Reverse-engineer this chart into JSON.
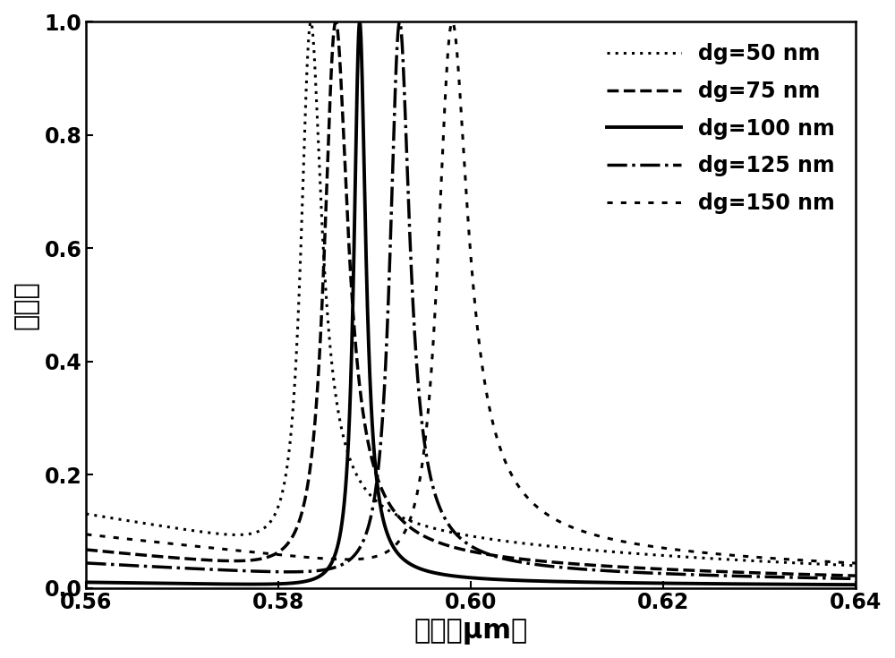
{
  "title": "",
  "xlabel": "波长（μm）",
  "ylabel": "反射率",
  "xlim": [
    0.56,
    0.64
  ],
  "ylim": [
    0.0,
    1.0
  ],
  "xticks": [
    0.56,
    0.58,
    0.6,
    0.62,
    0.64
  ],
  "yticks": [
    0.0,
    0.2,
    0.4,
    0.6,
    0.8,
    1.0
  ],
  "curves": [
    {
      "label": "dg=50 nm",
      "linestyle": "densely_dotted",
      "linewidth": 2.2,
      "lam0": 0.5832,
      "gamma": 0.0028,
      "q": 8.0,
      "t_bg": 0.35
    },
    {
      "label": "dg=75 nm",
      "linestyle": "--",
      "linewidth": 2.5,
      "lam0": 0.5856,
      "gamma": 0.003,
      "q": 10.0,
      "t_bg": 0.26
    },
    {
      "label": "dg=100 nm",
      "linestyle": "-",
      "linewidth": 2.8,
      "lam0": 0.5884,
      "gamma": 0.0018,
      "q": 15.0,
      "t_bg": 0.09
    },
    {
      "label": "dg=125 nm",
      "linestyle": "-.",
      "linewidth": 2.5,
      "lam0": 0.5923,
      "gamma": 0.0028,
      "q": 12.0,
      "t_bg": 0.2
    },
    {
      "label": "dg=150 nm",
      "linestyle": "loosely_dotted",
      "linewidth": 2.2,
      "lam0": 0.5975,
      "gamma": 0.004,
      "q": 9.0,
      "t_bg": 0.29
    }
  ],
  "legend_fontsize": 17,
  "axis_fontsize": 22,
  "tick_fontsize": 17,
  "background_color": "#ffffff",
  "line_color": "#000000"
}
